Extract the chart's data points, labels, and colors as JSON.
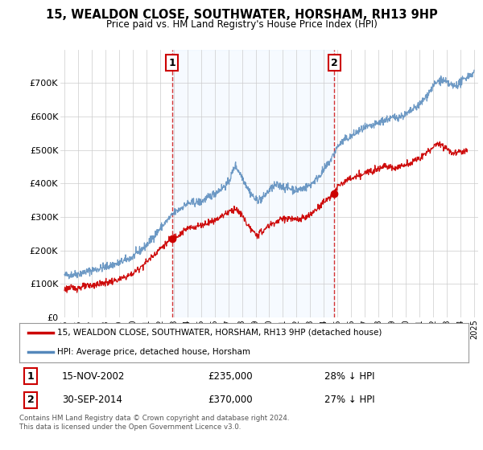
{
  "title": "15, WEALDON CLOSE, SOUTHWATER, HORSHAM, RH13 9HP",
  "subtitle": "Price paid vs. HM Land Registry's House Price Index (HPI)",
  "sale1_date": "15-NOV-2002",
  "sale1_price": 235000,
  "sale1_hpi_pct": "28% ↓ HPI",
  "sale2_date": "30-SEP-2014",
  "sale2_price": 370000,
  "sale2_hpi_pct": "27% ↓ HPI",
  "legend_line1": "15, WEALDON CLOSE, SOUTHWATER, HORSHAM, RH13 9HP (detached house)",
  "legend_line2": "HPI: Average price, detached house, Horsham",
  "footnote": "Contains HM Land Registry data © Crown copyright and database right 2024.\nThis data is licensed under the Open Government Licence v3.0.",
  "line_color_red": "#cc0000",
  "line_color_blue": "#5588bb",
  "shade_color": "#ddeeff",
  "background_color": "#ffffff",
  "grid_color": "#cccccc",
  "ylim": [
    0,
    800000
  ],
  "yticks": [
    0,
    100000,
    200000,
    300000,
    400000,
    500000,
    600000,
    700000
  ],
  "ytick_labels": [
    "£0",
    "£100K",
    "£200K",
    "£300K",
    "£400K",
    "£500K",
    "£600K",
    "£700K"
  ],
  "sale1_x": 2002.88,
  "sale2_x": 2014.75,
  "marker_color": "#cc0000",
  "vline_color": "#cc0000",
  "label_box_color": "#ffffff",
  "label_box_edge": "#cc0000",
  "hpi_base_points": [
    [
      1995.0,
      125000
    ],
    [
      1996.0,
      130000
    ],
    [
      1997.0,
      140000
    ],
    [
      1998.0,
      150000
    ],
    [
      1999.0,
      162000
    ],
    [
      2000.0,
      180000
    ],
    [
      2001.0,
      215000
    ],
    [
      2002.0,
      265000
    ],
    [
      2003.0,
      310000
    ],
    [
      2004.0,
      340000
    ],
    [
      2005.0,
      345000
    ],
    [
      2006.0,
      370000
    ],
    [
      2007.0,
      400000
    ],
    [
      2007.5,
      455000
    ],
    [
      2008.0,
      420000
    ],
    [
      2008.5,
      380000
    ],
    [
      2009.0,
      350000
    ],
    [
      2009.5,
      355000
    ],
    [
      2010.0,
      380000
    ],
    [
      2010.5,
      395000
    ],
    [
      2011.0,
      390000
    ],
    [
      2011.5,
      385000
    ],
    [
      2012.0,
      380000
    ],
    [
      2012.5,
      385000
    ],
    [
      2013.0,
      395000
    ],
    [
      2013.5,
      415000
    ],
    [
      2014.0,
      440000
    ],
    [
      2014.5,
      470000
    ],
    [
      2015.0,
      510000
    ],
    [
      2015.5,
      530000
    ],
    [
      2016.0,
      540000
    ],
    [
      2016.5,
      555000
    ],
    [
      2017.0,
      565000
    ],
    [
      2017.5,
      570000
    ],
    [
      2018.0,
      580000
    ],
    [
      2018.5,
      590000
    ],
    [
      2019.0,
      595000
    ],
    [
      2019.5,
      600000
    ],
    [
      2020.0,
      605000
    ],
    [
      2020.5,
      620000
    ],
    [
      2021.0,
      635000
    ],
    [
      2021.5,
      660000
    ],
    [
      2022.0,
      690000
    ],
    [
      2022.5,
      710000
    ],
    [
      2023.0,
      700000
    ],
    [
      2023.5,
      690000
    ],
    [
      2024.0,
      700000
    ],
    [
      2024.5,
      720000
    ],
    [
      2025.0,
      730000
    ]
  ],
  "red_base_points": [
    [
      1995.0,
      85000
    ],
    [
      1996.0,
      88000
    ],
    [
      1997.0,
      95000
    ],
    [
      1998.0,
      103000
    ],
    [
      1999.0,
      112000
    ],
    [
      2000.0,
      130000
    ],
    [
      2001.0,
      165000
    ],
    [
      2002.0,
      205000
    ],
    [
      2002.88,
      235000
    ],
    [
      2003.0,
      240000
    ],
    [
      2003.5,
      250000
    ],
    [
      2004.0,
      265000
    ],
    [
      2005.0,
      275000
    ],
    [
      2006.0,
      290000
    ],
    [
      2007.0,
      315000
    ],
    [
      2007.5,
      325000
    ],
    [
      2008.0,
      305000
    ],
    [
      2008.5,
      270000
    ],
    [
      2009.0,
      245000
    ],
    [
      2009.5,
      255000
    ],
    [
      2010.0,
      275000
    ],
    [
      2010.5,
      285000
    ],
    [
      2011.0,
      295000
    ],
    [
      2011.5,
      295000
    ],
    [
      2012.0,
      290000
    ],
    [
      2012.5,
      295000
    ],
    [
      2013.0,
      305000
    ],
    [
      2013.5,
      325000
    ],
    [
      2014.0,
      345000
    ],
    [
      2014.75,
      370000
    ],
    [
      2015.0,
      390000
    ],
    [
      2015.5,
      405000
    ],
    [
      2016.0,
      415000
    ],
    [
      2016.5,
      420000
    ],
    [
      2017.0,
      430000
    ],
    [
      2017.5,
      440000
    ],
    [
      2018.0,
      445000
    ],
    [
      2018.5,
      455000
    ],
    [
      2019.0,
      445000
    ],
    [
      2019.5,
      450000
    ],
    [
      2020.0,
      455000
    ],
    [
      2020.5,
      465000
    ],
    [
      2021.0,
      475000
    ],
    [
      2021.5,
      490000
    ],
    [
      2022.0,
      510000
    ],
    [
      2022.5,
      520000
    ],
    [
      2023.0,
      505000
    ],
    [
      2023.5,
      490000
    ],
    [
      2024.0,
      495000
    ],
    [
      2024.5,
      500000
    ]
  ]
}
